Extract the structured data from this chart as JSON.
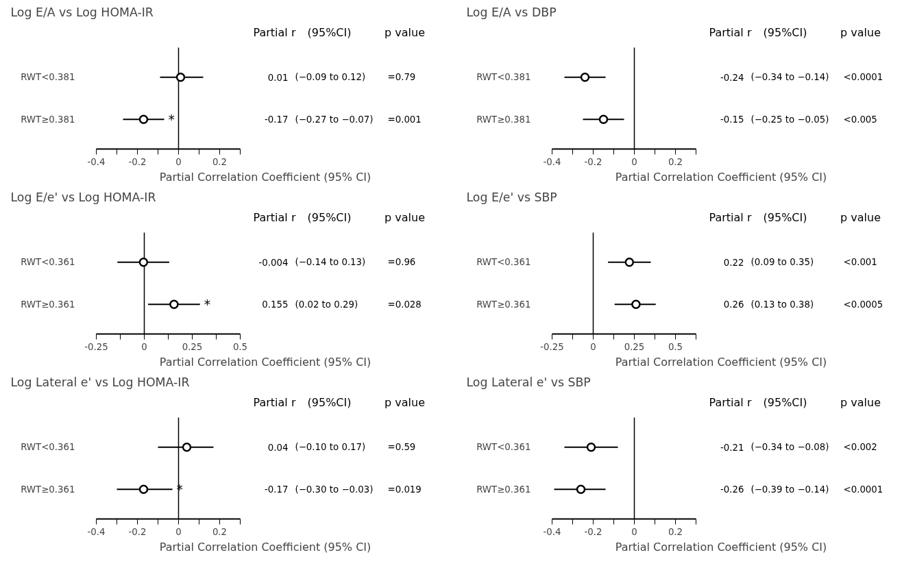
{
  "chart_data": [
    {
      "type": "scatter",
      "orientation": "horizontal",
      "title": "Log E/A vs Log HOMA-IR",
      "xlabel": "Partial Correlation Coefficient (95% CI)",
      "categories": [
        "RWT<0.381",
        "RWT≥0.381"
      ],
      "values": [
        0.01,
        -0.17
      ],
      "errors": [
        [
          -0.09,
          0.12
        ],
        [
          -0.27,
          -0.07
        ]
      ],
      "color": "#000000",
      "marker": "circle",
      "data_labels": true,
      "grid": false,
      "xlim": [
        -0.4,
        0.3
      ],
      "xticks": [
        -0.4,
        {
          "value": -0.3,
          "label": null
        },
        -0.2,
        {
          "value": -0.1,
          "label": null
        },
        0,
        {
          "value": 0.1,
          "label": null
        },
        0.2,
        {
          "value": 0.3,
          "label": null
        }
      ],
      "ref_lines": [
        {
          "axis": "x",
          "value": 0
        }
      ],
      "annotations": [
        "Partial r",
        "(95%CI)",
        "p value",
        "(−0.09 to 0.12)",
        "=0.79",
        "(−0.27 to −0.07)",
        "=0.001",
        "*"
      ]
    },
    {
      "type": "scatter",
      "orientation": "horizontal",
      "title": "Log E/A vs DBP",
      "xlabel": "Partial Correlation Coefficient (95% CI)",
      "categories": [
        "RWT<0.381",
        "RWT≥0.381"
      ],
      "values": [
        -0.24,
        -0.15
      ],
      "errors": [
        [
          -0.34,
          -0.14
        ],
        [
          -0.25,
          -0.05
        ]
      ],
      "color": "#000000",
      "marker": "circle",
      "data_labels": true,
      "grid": false,
      "xlim": [
        -0.4,
        0.3
      ],
      "xticks": [
        -0.4,
        {
          "value": -0.3,
          "label": null
        },
        -0.2,
        {
          "value": -0.1,
          "label": null
        },
        0,
        {
          "value": 0.1,
          "label": null
        },
        0.2,
        {
          "value": 0.3,
          "label": null
        }
      ],
      "ref_lines": [
        {
          "axis": "x",
          "value": 0
        }
      ],
      "annotations": [
        "Partial r",
        "(95%CI)",
        "p value",
        "(−0.34 to −0.14)",
        "<0.0001",
        "(−0.25 to −0.05)",
        "<0.005"
      ]
    },
    {
      "type": "scatter",
      "orientation": "horizontal",
      "title": "Log E/e' vs Log HOMA-IR",
      "xlabel": "Partial Correlation Coefficient (95% CI)",
      "categories": [
        "RWT<0.361",
        "RWT≥0.361"
      ],
      "values": [
        -0.004,
        0.155
      ],
      "errors": [
        [
          -0.14,
          0.13
        ],
        [
          0.02,
          0.29
        ]
      ],
      "color": "#000000",
      "marker": "circle",
      "data_labels": true,
      "grid": false,
      "xlim": [
        -0.25,
        0.5
      ],
      "xticks": [
        -0.25,
        {
          "value": -0.125,
          "label": null
        },
        0,
        {
          "value": 0.125,
          "label": null
        },
        0.25,
        {
          "value": 0.375,
          "label": null
        },
        0.5
      ],
      "ref_lines": [
        {
          "axis": "x",
          "value": 0
        }
      ],
      "annotations": [
        "Partial r",
        "(95%CI)",
        "p value",
        "(−0.14 to 0.13)",
        "=0.96",
        "(0.02 to 0.29)",
        "=0.028",
        "*"
      ]
    },
    {
      "type": "scatter",
      "orientation": "horizontal",
      "title": "Log E/e' vs SBP",
      "xlabel": "Partial Correlation Coefficient (95% CI)",
      "categories": [
        "RWT<0.361",
        "RWT≥0.361"
      ],
      "values": [
        0.22,
        0.26
      ],
      "errors": [
        [
          0.09,
          0.35
        ],
        [
          0.13,
          0.38
        ]
      ],
      "color": "#000000",
      "marker": "circle",
      "data_labels": true,
      "grid": false,
      "xlim": [
        -0.25,
        0.625
      ],
      "xticks": [
        -0.25,
        {
          "value": -0.125,
          "label": null
        },
        0,
        {
          "value": 0.125,
          "label": null
        },
        0.25,
        {
          "value": 0.375,
          "label": null
        },
        0.5,
        {
          "value": 0.625,
          "label": null
        }
      ],
      "ref_lines": [
        {
          "axis": "x",
          "value": 0
        }
      ],
      "annotations": [
        "Partial r",
        "(95%CI)",
        "p value",
        "(0.09 to 0.35)",
        "<0.001",
        "(0.13 to 0.38)",
        "<0.0005"
      ]
    },
    {
      "type": "scatter",
      "orientation": "horizontal",
      "title": "Log Lateral e' vs Log HOMA-IR",
      "xlabel": "Partial Correlation Coefficient (95% CI)",
      "categories": [
        "RWT<0.361",
        "RWT≥0.361"
      ],
      "values": [
        0.04,
        -0.17
      ],
      "errors": [
        [
          -0.1,
          0.17
        ],
        [
          -0.3,
          -0.03
        ]
      ],
      "color": "#000000",
      "marker": "circle",
      "data_labels": true,
      "grid": false,
      "xlim": [
        -0.4,
        0.3
      ],
      "xticks": [
        -0.4,
        {
          "value": -0.3,
          "label": null
        },
        -0.2,
        {
          "value": -0.1,
          "label": null
        },
        0,
        {
          "value": 0.1,
          "label": null
        },
        0.2,
        {
          "value": 0.3,
          "label": null
        }
      ],
      "ref_lines": [
        {
          "axis": "x",
          "value": 0
        }
      ],
      "annotations": [
        "Partial r",
        "(95%CI)",
        "p value",
        "(−0.10 to 0.17)",
        "=0.59",
        "(−0.30 to −0.03)",
        "=0.019",
        "*"
      ]
    },
    {
      "type": "scatter",
      "orientation": "horizontal",
      "title": "Log Lateral e' vs SBP",
      "xlabel": "Partial Correlation Coefficient (95% CI)",
      "categories": [
        "RWT<0.361",
        "RWT≥0.361"
      ],
      "values": [
        -0.21,
        -0.26
      ],
      "errors": [
        [
          -0.34,
          -0.08
        ],
        [
          -0.39,
          -0.14
        ]
      ],
      "color": "#000000",
      "marker": "circle",
      "data_labels": true,
      "grid": false,
      "xlim": [
        -0.4,
        0.3
      ],
      "xticks": [
        -0.4,
        {
          "value": -0.3,
          "label": null
        },
        -0.2,
        {
          "value": -0.1,
          "label": null
        },
        0,
        {
          "value": 0.1,
          "label": null
        },
        0.2,
        {
          "value": 0.3,
          "label": null
        }
      ],
      "ref_lines": [
        {
          "axis": "x",
          "value": 0
        }
      ],
      "annotations": [
        "Partial r",
        "(95%CI)",
        "p value",
        "(−0.34 to −0.08)",
        "<0.002",
        "(−0.39 to −0.14)",
        "<0.0001"
      ]
    }
  ]
}
